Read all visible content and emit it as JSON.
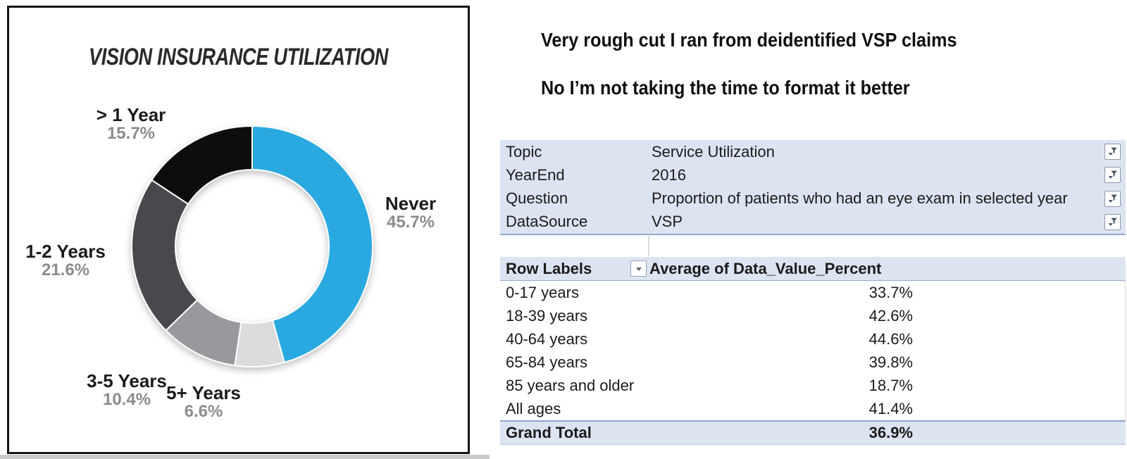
{
  "chart_data": [
    {
      "type": "pie",
      "subtype": "donut",
      "title": "VISION INSURANCE UTILIZATION",
      "start_angle_deg": 0,
      "direction": "clockwise",
      "inner_radius_ratio": 0.64,
      "legend_position": "outside-labels",
      "segments": [
        {
          "label": "Never",
          "value": 45.7,
          "pct_text": "45.7%",
          "color": "#2AA9E0"
        },
        {
          "label": "5+ Years",
          "value": 6.6,
          "pct_text": "6.6%",
          "color": "#D9DBDD"
        },
        {
          "label": "3-5 Years",
          "value": 10.4,
          "pct_text": "10.4%",
          "color": "#97999C"
        },
        {
          "label": "1-2 Years",
          "value": 21.6,
          "pct_text": "21.6%",
          "color": "#46494E"
        },
        {
          "label": "> 1 Year",
          "value": 15.7,
          "pct_text": "15.7%",
          "color": "#0B0B0C"
        }
      ]
    },
    {
      "type": "table",
      "title": "Average of Data_Value_Percent",
      "categories": [
        "0-17 years",
        "18-39 years",
        "40-64 years",
        "65-84 years",
        "85 years and older",
        "All ages"
      ],
      "values": [
        33.7,
        42.6,
        44.6,
        39.8,
        18.7,
        41.4
      ],
      "grand_total": 36.9
    }
  ],
  "notes": {
    "line1": "Very rough cut I ran from deidentified VSP claims",
    "line2": "No I’m not taking the time to format it better"
  },
  "filter_area": {
    "rows": [
      {
        "label": "Topic",
        "value": "Service Utilization"
      },
      {
        "label": "YearEnd",
        "value": "2016"
      },
      {
        "label": "Question",
        "value": "Proportion of patients who had an eye exam in selected year"
      },
      {
        "label": "DataSource",
        "value": "VSP"
      }
    ]
  },
  "pivot": {
    "header": {
      "row_labels": "Row Labels",
      "values": "Average of Data_Value_Percent"
    },
    "rows": [
      {
        "label": "0-17 years",
        "value": "33.7%"
      },
      {
        "label": "18-39 years",
        "value": "42.6%"
      },
      {
        "label": "40-64 years",
        "value": "44.6%"
      },
      {
        "label": "65-84 years",
        "value": "39.8%"
      },
      {
        "label": "85 years and older",
        "value": "18.7%"
      },
      {
        "label": "All ages",
        "value": "41.4%"
      }
    ],
    "grand_total": {
      "label": "Grand Total",
      "value": "36.9%"
    }
  },
  "icons": {
    "filter": "funnel-filter-icon (applied-filter funnel with small down arrow)",
    "dropdown": "chevron-down-icon"
  },
  "colors": {
    "accent_blue": "#2AA9E0",
    "table_band": "#DCE4F2",
    "band_border": "#93A9CD",
    "pct_label_gray": "#8C8C8E",
    "card_border": "#141414"
  }
}
